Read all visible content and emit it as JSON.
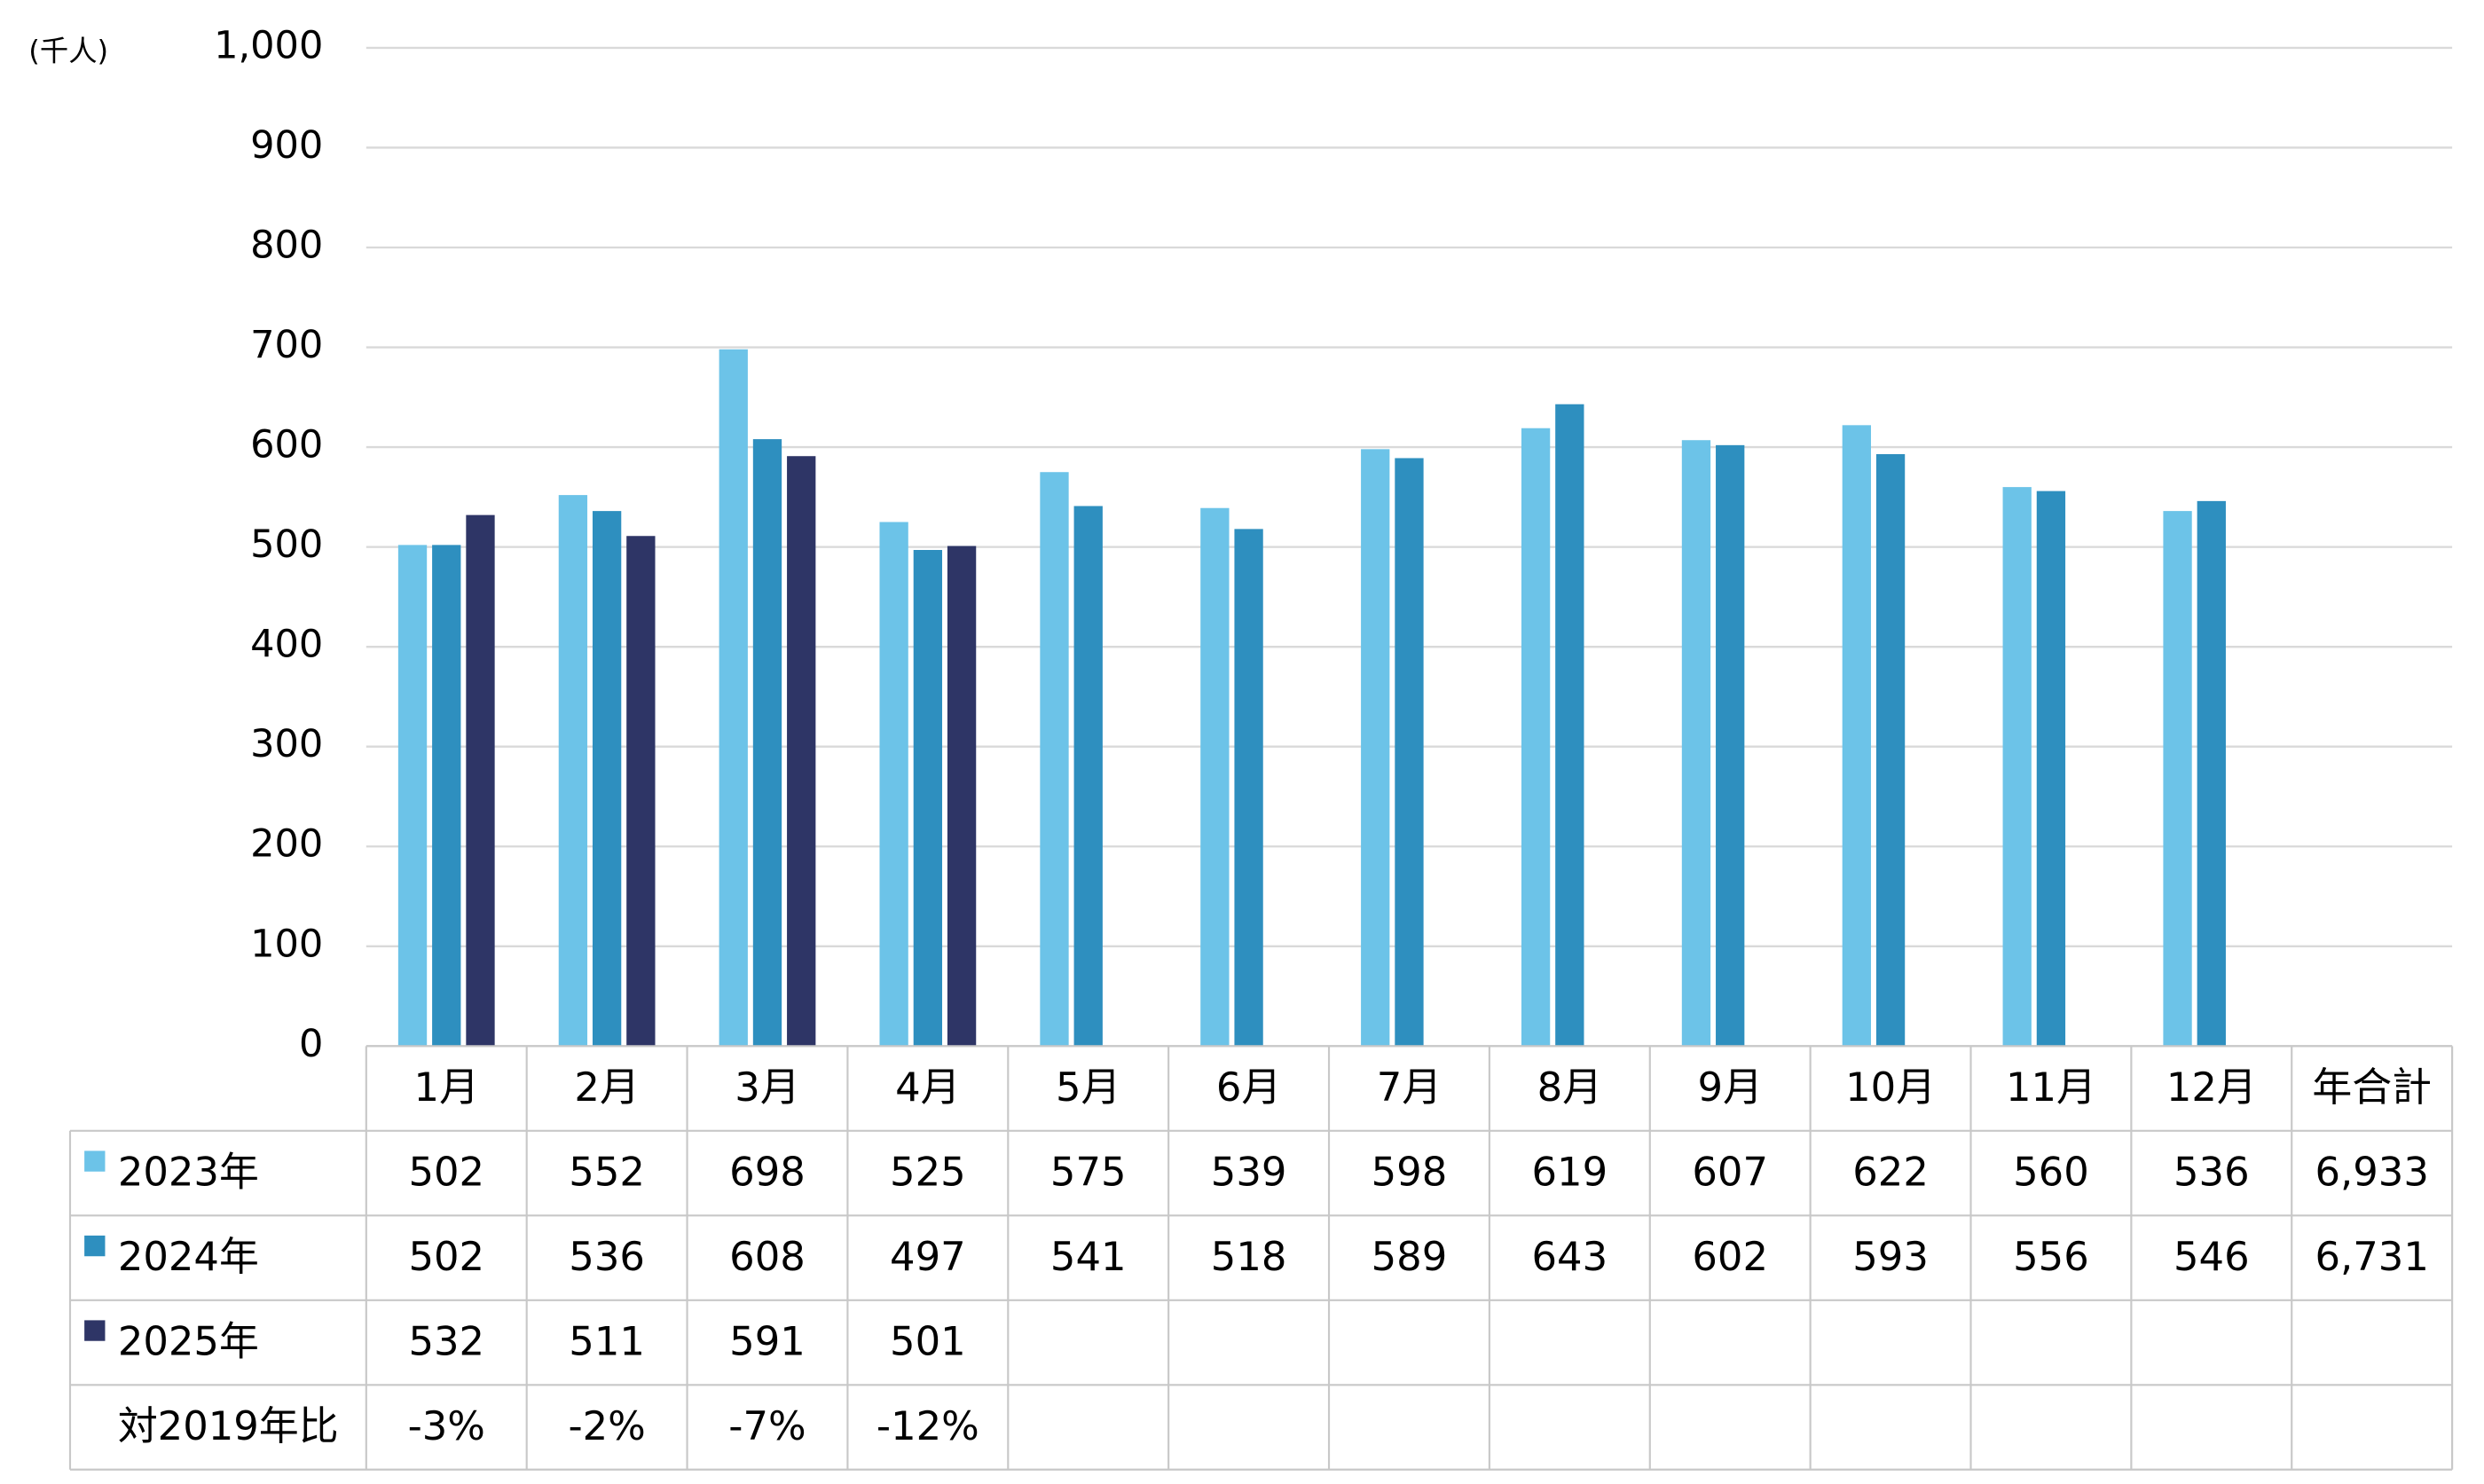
{
  "chart_data": {
    "type": "bar",
    "unit_label": "(千人)",
    "categories": [
      "1月",
      "2月",
      "3月",
      "4月",
      "5月",
      "6月",
      "7月",
      "8月",
      "9月",
      "10月",
      "11月",
      "12月"
    ],
    "total_header": "年合計",
    "series": [
      {
        "name": "2023年",
        "color": "#6cc3e8",
        "values": [
          502,
          552,
          698,
          525,
          575,
          539,
          598,
          619,
          607,
          622,
          560,
          536
        ],
        "total": 6933,
        "total_label": "6,933"
      },
      {
        "name": "2024年",
        "color": "#2e8fbf",
        "values": [
          502,
          536,
          608,
          497,
          541,
          518,
          589,
          643,
          602,
          593,
          556,
          546
        ],
        "total": 6731,
        "total_label": "6,731"
      },
      {
        "name": "2025年",
        "color": "#2e3566",
        "values": [
          532,
          511,
          591,
          501,
          null,
          null,
          null,
          null,
          null,
          null,
          null,
          null
        ]
      }
    ],
    "ratio": {
      "name": "対2019年比",
      "values": [
        -3,
        -2,
        -7,
        -12
      ],
      "value_labels": [
        "-3%",
        "-2%",
        "-7%",
        "-12%"
      ]
    },
    "ylim": [
      0,
      1000
    ],
    "yticks": [
      0,
      100,
      200,
      300,
      400,
      500,
      600,
      700,
      800,
      900,
      {
        "value": 1000,
        "label": "1,000"
      }
    ],
    "grid": true
  }
}
